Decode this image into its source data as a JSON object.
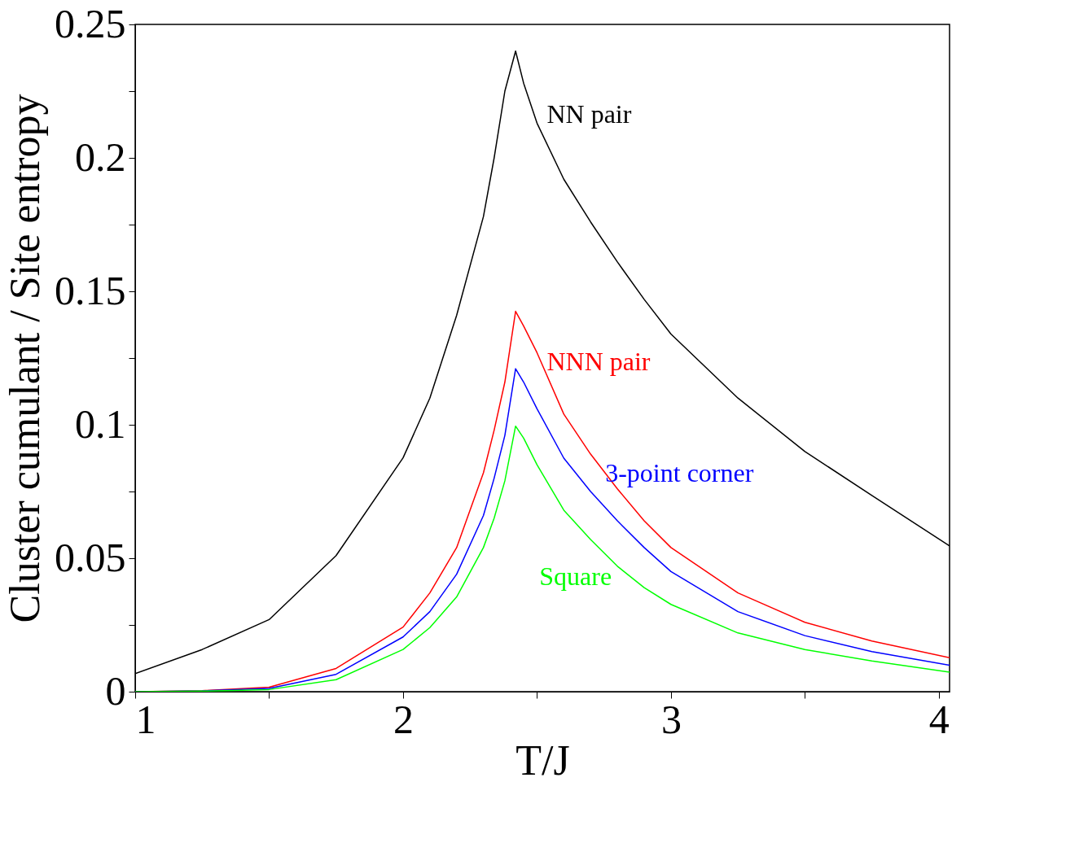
{
  "chart_data": {
    "type": "line",
    "xlabel": "T/J",
    "ylabel": "Cluster cumulant / Site entropy",
    "xlim": [
      1,
      4.04
    ],
    "ylim": [
      0,
      0.25
    ],
    "xticks": [
      1,
      {
        "value": 1.5,
        "label": null
      },
      2,
      {
        "value": 2.5,
        "label": null
      },
      3,
      {
        "value": 3.5,
        "label": null
      },
      4
    ],
    "yticks": [
      0,
      {
        "value": 0.025,
        "label": null
      },
      0.05,
      {
        "value": 0.075,
        "label": null
      },
      0.1,
      {
        "value": 0.125,
        "label": null
      },
      0.15,
      {
        "value": 0.175,
        "label": null
      },
      0.2,
      {
        "value": 0.225,
        "label": null
      },
      0.25
    ],
    "grid": false,
    "legend": false,
    "marker": "none",
    "line_style": "solid",
    "x": [
      1,
      1.25,
      1.5,
      1.75,
      2,
      2.1,
      2.2,
      2.3,
      2.34,
      2.38,
      2.42,
      2.45,
      2.5,
      2.6,
      2.7,
      2.8,
      2.9,
      3,
      3.25,
      3.5,
      3.75,
      4.04
    ],
    "series": [
      {
        "name": "NN pair",
        "color": "#000000",
        "values": [
          0.0068,
          0.0158,
          0.027,
          0.051,
          0.0876,
          0.11,
          0.141,
          0.178,
          0.2,
          0.225,
          0.24,
          0.228,
          0.213,
          0.192,
          0.176,
          0.161,
          0.147,
          0.134,
          0.11,
          0.09,
          0.0735,
          0.0546
        ]
      },
      {
        "name": "NNN pair",
        "color": "#ff0000",
        "values": [
          0,
          0.0004,
          0.0017,
          0.0087,
          0.0242,
          0.037,
          0.054,
          0.082,
          0.098,
          0.116,
          0.1425,
          0.137,
          0.127,
          0.104,
          0.089,
          0.076,
          0.064,
          0.054,
          0.037,
          0.026,
          0.019,
          0.0127
        ]
      },
      {
        "name": "3-point corner",
        "color": "#0000ff",
        "values": [
          0,
          0.0003,
          0.0012,
          0.0065,
          0.0205,
          0.03,
          0.044,
          0.066,
          0.08,
          0.096,
          0.121,
          0.116,
          0.106,
          0.0875,
          0.075,
          0.064,
          0.054,
          0.045,
          0.03,
          0.021,
          0.015,
          0.0099
        ]
      },
      {
        "name": "Square",
        "color": "#00ff00",
        "values": [
          0,
          0.0002,
          0.0008,
          0.0045,
          0.0158,
          0.024,
          0.0355,
          0.054,
          0.065,
          0.079,
          0.0995,
          0.095,
          0.085,
          0.068,
          0.057,
          0.047,
          0.039,
          0.0327,
          0.022,
          0.0158,
          0.0115,
          0.0073
        ]
      }
    ]
  }
}
